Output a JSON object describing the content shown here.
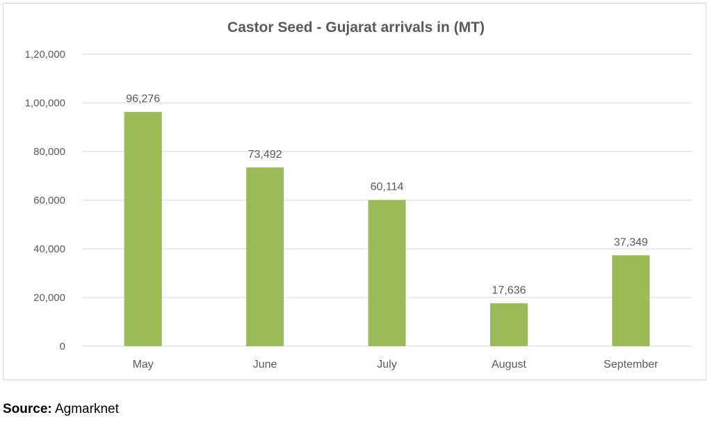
{
  "chart_data": {
    "type": "bar",
    "title": "Castor Seed - Gujarat arrivals in (MT)",
    "categories": [
      "May",
      "June",
      "July",
      "August",
      "September"
    ],
    "values": [
      96276,
      73492,
      60114,
      17636,
      37349
    ],
    "data_labels": [
      "96,276",
      "73,492",
      "60,114",
      "17,636",
      "37,349"
    ],
    "ylim": [
      0,
      120000
    ],
    "yticks": [
      0,
      20000,
      40000,
      60000,
      80000,
      100000,
      120000
    ],
    "ytick_labels": [
      "0",
      "20,000",
      "40,000",
      "60,000",
      "80,000",
      "1,00,000",
      "1,20,000"
    ],
    "grid": true,
    "legend": "none",
    "bar_color": "#9bbb59",
    "grid_color": "#d9d9d9",
    "text_color": "#595959"
  },
  "source": {
    "label": "Source:",
    "value": "Agmarknet"
  }
}
